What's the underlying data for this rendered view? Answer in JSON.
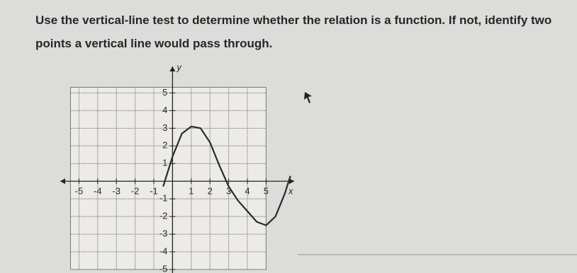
{
  "question": "Use the vertical-line test to determine whether the relation is a function. If not, identify two points a vertical line would pass through.",
  "chart_data": {
    "type": "line",
    "x_label": "x",
    "y_label": "y",
    "x": [
      -0.5,
      0,
      0.5,
      1,
      1.5,
      2,
      2.5,
      3,
      3.5,
      4,
      4.5,
      5,
      5.5,
      6,
      6.3
    ],
    "series": [
      {
        "color": "#2a2a2a",
        "values": [
          -0.3,
          1.4,
          2.7,
          3.1,
          3.0,
          2.2,
          0.9,
          -0.3,
          -1.1,
          -1.7,
          -2.3,
          -2.5,
          -2.0,
          -0.7,
          0.3
        ]
      }
    ],
    "xlim": [
      -6,
      6.5
    ],
    "ylim": [
      -5.2,
      6.5
    ],
    "xticks": [
      -5,
      -4,
      -3,
      -2,
      -1,
      1,
      2,
      3,
      4,
      5
    ],
    "yticks": [
      5,
      4,
      3,
      2,
      1,
      -1,
      -2,
      -3,
      -4,
      -5
    ],
    "grid": true
  }
}
